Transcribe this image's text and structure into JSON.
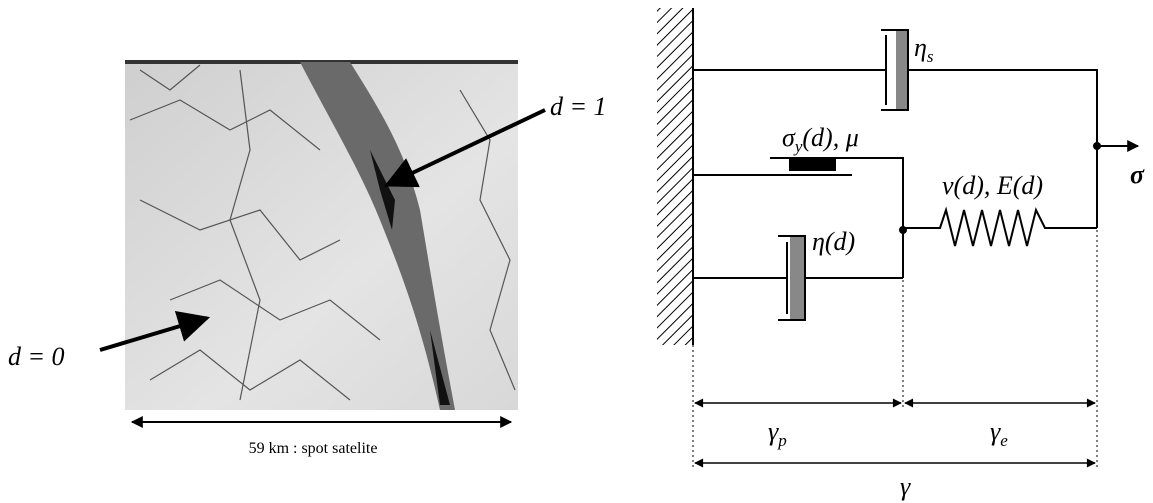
{
  "left_panel": {
    "label_top": "d = 1",
    "label_bottom": "d = 0",
    "caption": "59 km : spot satelite"
  },
  "right_panel": {
    "eta_s": {
      "base": "η",
      "sub": "s"
    },
    "sigma_y": {
      "base": "σ",
      "sub": "y",
      "rest": "(d), μ"
    },
    "spring": "ν(d), E(d)",
    "eta_d": "η(d)",
    "sigma": "σ",
    "gamma_p": {
      "base": "γ",
      "sub": "p"
    },
    "gamma_e": {
      "base": "γ",
      "sub": "e"
    },
    "gamma": "γ"
  }
}
